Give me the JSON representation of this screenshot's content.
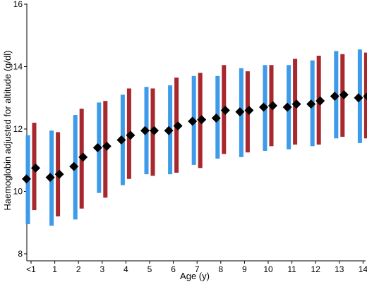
{
  "chart_data": {
    "type": "range-bar",
    "title": "",
    "xlabel": "Age (y)",
    "ylabel": "Haemoglobin adjusted for altitude (g/dl)",
    "ylim": [
      8,
      16
    ],
    "yticks": [
      "8",
      "10",
      "12",
      "14",
      "16"
    ],
    "categories": [
      "<1",
      "1",
      "2",
      "3",
      "4",
      "5",
      "6",
      "7",
      "8",
      "9",
      "10",
      "11",
      "12",
      "13",
      "14"
    ],
    "grid": false,
    "legend": "none",
    "series": [
      {
        "color": "#3d9be9",
        "low": [
          8.95,
          8.9,
          9.1,
          9.95,
          10.2,
          10.55,
          10.55,
          10.85,
          11.05,
          11.1,
          11.3,
          11.35,
          11.45,
          11.7,
          11.55
        ],
        "high": [
          11.8,
          11.95,
          12.45,
          12.85,
          13.1,
          13.35,
          13.4,
          13.7,
          13.7,
          13.95,
          14.05,
          14.05,
          14.2,
          14.5,
          14.55
        ],
        "median": [
          10.4,
          10.45,
          10.8,
          11.4,
          11.65,
          11.95,
          11.95,
          12.25,
          12.35,
          12.55,
          12.7,
          12.7,
          12.8,
          13.05,
          13.0
        ]
      },
      {
        "color": "#a8282d",
        "low": [
          9.4,
          9.2,
          9.45,
          9.8,
          10.4,
          10.5,
          10.6,
          10.75,
          11.2,
          11.25,
          11.45,
          11.5,
          11.5,
          11.75,
          11.7
        ],
        "high": [
          12.2,
          11.9,
          12.65,
          12.9,
          13.3,
          13.3,
          13.65,
          13.8,
          14.05,
          13.85,
          14.05,
          14.25,
          14.35,
          14.4,
          14.45
        ],
        "median": [
          10.75,
          10.55,
          11.1,
          11.45,
          11.8,
          11.95,
          12.1,
          12.3,
          12.6,
          12.6,
          12.75,
          12.8,
          12.9,
          13.1,
          13.05
        ]
      }
    ]
  }
}
